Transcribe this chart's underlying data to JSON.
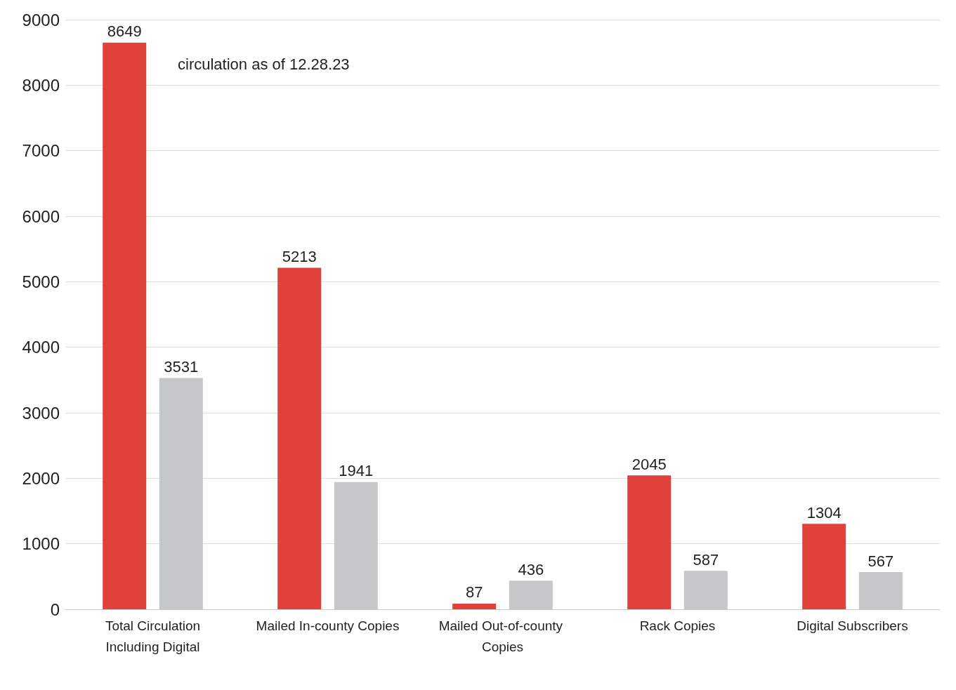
{
  "chart_data": {
    "type": "bar",
    "annotations": [
      "circulation as of 12.28.23"
    ],
    "categories": [
      "Total Circulation\nIncluding Digital",
      "Mailed In-county Copies",
      "Mailed Out-of-county Copies",
      "Rack Copies",
      "Digital Subscribers"
    ],
    "series": [
      {
        "color": "#e0413a",
        "values": [
          8649,
          5213,
          87,
          2045,
          1304
        ]
      },
      {
        "color": "#c6c7c9",
        "values": [
          3531,
          1941,
          436,
          587,
          567
        ]
      }
    ],
    "ylim": [
      0,
      9000
    ],
    "yticks": [
      0,
      1000,
      2000,
      3000,
      4000,
      5000,
      6000,
      7000,
      8000,
      9000
    ],
    "grid": "y",
    "data_labels": true
  }
}
